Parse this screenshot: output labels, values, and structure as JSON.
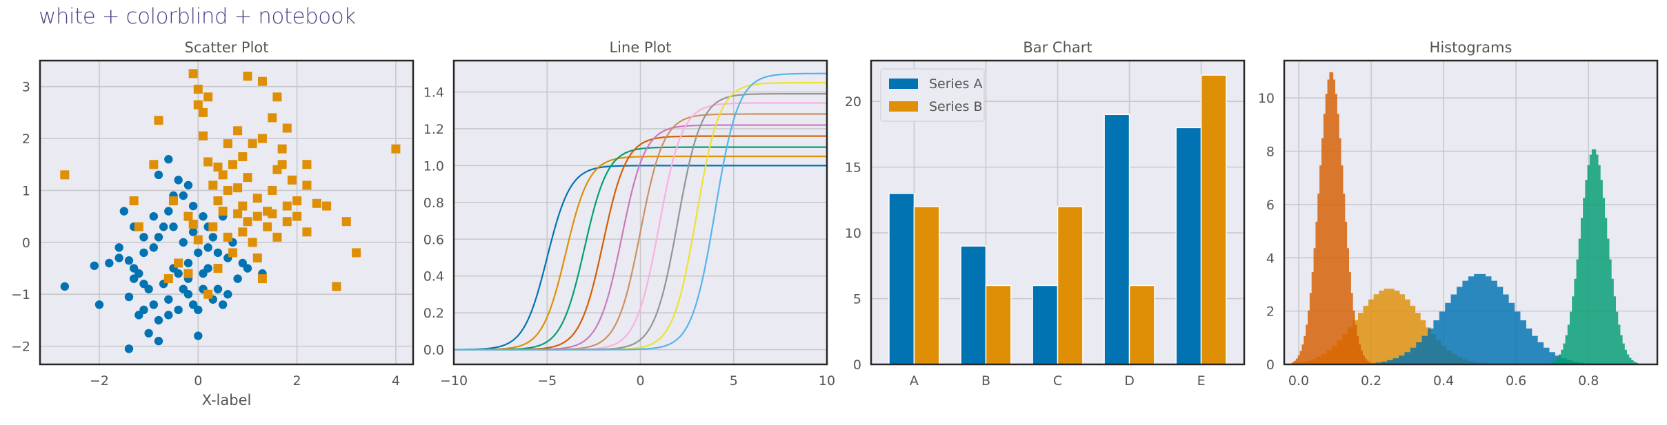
{
  "figure": {
    "suptitle": "white + colorblind + notebook",
    "colors": {
      "background": "#eaeaf2",
      "grid": "#c8c8cc",
      "palette": [
        "#0173b2",
        "#de8f05",
        "#029e73",
        "#d55e00",
        "#cc78bc",
        "#ca9161",
        "#fbafe4",
        "#949494",
        "#ece133",
        "#56b4e9"
      ]
    }
  },
  "chart_data": [
    {
      "type": "scatter",
      "title": "Scatter Plot",
      "xlabel": "X-label",
      "ylabel": "",
      "xlim": [
        -3.2,
        4.35
      ],
      "ylim": [
        -2.35,
        3.5
      ],
      "xticks": [
        -2,
        0,
        2,
        4
      ],
      "yticks": [
        -2,
        -1,
        0,
        1,
        2,
        3
      ],
      "grid": true,
      "series": [
        {
          "marker": "circle",
          "color": "#0173b2",
          "points": [
            [
              -2.7,
              -0.85
            ],
            [
              -2.0,
              -1.2
            ],
            [
              -1.6,
              -0.1
            ],
            [
              -1.4,
              -0.35
            ],
            [
              -1.3,
              -0.5
            ],
            [
              -1.2,
              -0.6
            ],
            [
              -1.1,
              -0.8
            ],
            [
              -1.4,
              -1.05
            ],
            [
              -1.0,
              -0.9
            ],
            [
              -0.9,
              -1.2
            ],
            [
              -1.2,
              -1.4
            ],
            [
              -1.4,
              -2.05
            ],
            [
              -0.8,
              -1.9
            ],
            [
              -1.0,
              -1.75
            ],
            [
              -1.1,
              -1.3
            ],
            [
              -0.8,
              -1.5
            ],
            [
              -0.6,
              -1.1
            ],
            [
              -0.4,
              -1.3
            ],
            [
              -0.3,
              -0.9
            ],
            [
              -0.2,
              -0.7
            ],
            [
              -0.1,
              -1.2
            ],
            [
              0.0,
              -1.3
            ],
            [
              0.1,
              -0.9
            ],
            [
              0.2,
              -0.5
            ],
            [
              0.3,
              -1.1
            ],
            [
              0.4,
              -0.9
            ],
            [
              0.5,
              -1.2
            ],
            [
              0.6,
              -1.0
            ],
            [
              0.8,
              -0.7
            ],
            [
              0.9,
              -0.4
            ],
            [
              0.6,
              -0.3
            ],
            [
              0.4,
              -0.2
            ],
            [
              0.3,
              0.1
            ],
            [
              0.2,
              0.3
            ],
            [
              0.1,
              0.5
            ],
            [
              -0.1,
              0.7
            ],
            [
              -0.3,
              0.9
            ],
            [
              -0.5,
              0.9
            ],
            [
              -0.6,
              0.6
            ],
            [
              -0.7,
              0.3
            ],
            [
              -0.8,
              0.1
            ],
            [
              -0.9,
              -0.1
            ],
            [
              -1.1,
              0.1
            ],
            [
              -1.3,
              0.3
            ],
            [
              -1.5,
              0.6
            ],
            [
              -1.6,
              -0.3
            ],
            [
              -1.8,
              -0.4
            ],
            [
              -0.2,
              1.1
            ],
            [
              -0.4,
              1.2
            ],
            [
              -0.6,
              1.6
            ],
            [
              -0.8,
              1.3
            ],
            [
              -0.5,
              0.3
            ],
            [
              -0.3,
              0.0
            ],
            [
              0.0,
              -0.2
            ],
            [
              0.2,
              -0.1
            ],
            [
              0.5,
              0.5
            ],
            [
              0.7,
              0.0
            ],
            [
              1.0,
              -0.5
            ],
            [
              -0.2,
              -0.4
            ],
            [
              -0.4,
              -0.6
            ],
            [
              -0.7,
              -0.8
            ],
            [
              -0.5,
              -0.5
            ],
            [
              0.1,
              -0.6
            ],
            [
              0.0,
              -1.8
            ],
            [
              -0.9,
              0.5
            ],
            [
              -1.1,
              -0.2
            ],
            [
              -1.3,
              -0.7
            ],
            [
              -0.6,
              -1.4
            ],
            [
              -0.2,
              -1.0
            ],
            [
              -0.1,
              0.2
            ],
            [
              1.3,
              -0.6
            ],
            [
              -2.1,
              -0.45
            ]
          ]
        },
        {
          "marker": "square",
          "color": "#de8f05",
          "points": [
            [
              -2.7,
              1.3
            ],
            [
              -1.3,
              0.8
            ],
            [
              -1.2,
              0.3
            ],
            [
              -0.9,
              1.5
            ],
            [
              -0.8,
              2.35
            ],
            [
              -0.6,
              -0.7
            ],
            [
              -0.5,
              0.8
            ],
            [
              -0.4,
              -0.4
            ],
            [
              -0.2,
              0.5
            ],
            [
              -0.1,
              3.25
            ],
            [
              0.0,
              2.95
            ],
            [
              0.0,
              2.65
            ],
            [
              0.1,
              2.5
            ],
            [
              0.1,
              2.05
            ],
            [
              0.2,
              1.55
            ],
            [
              0.3,
              1.1
            ],
            [
              0.3,
              0.3
            ],
            [
              0.4,
              0.8
            ],
            [
              0.5,
              1.3
            ],
            [
              0.6,
              1.9
            ],
            [
              0.7,
              1.5
            ],
            [
              0.8,
              1.05
            ],
            [
              0.9,
              0.7
            ],
            [
              1.0,
              0.4
            ],
            [
              1.1,
              0.0
            ],
            [
              1.2,
              -0.3
            ],
            [
              1.3,
              -0.7
            ],
            [
              1.4,
              0.6
            ],
            [
              1.5,
              1.0
            ],
            [
              1.6,
              1.4
            ],
            [
              1.7,
              1.8
            ],
            [
              1.8,
              2.2
            ],
            [
              1.6,
              2.8
            ],
            [
              1.3,
              3.1
            ],
            [
              1.0,
              3.2
            ],
            [
              0.8,
              2.15
            ],
            [
              0.9,
              1.65
            ],
            [
              1.0,
              1.25
            ],
            [
              1.2,
              0.85
            ],
            [
              1.4,
              0.3
            ],
            [
              1.6,
              0.1
            ],
            [
              1.8,
              0.4
            ],
            [
              2.0,
              0.8
            ],
            [
              2.2,
              1.1
            ],
            [
              2.4,
              0.75
            ],
            [
              2.6,
              0.7
            ],
            [
              2.8,
              -0.85
            ],
            [
              3.0,
              0.4
            ],
            [
              3.2,
              -0.2
            ],
            [
              4.0,
              1.8
            ],
            [
              0.4,
              -0.5
            ],
            [
              0.2,
              -1.0
            ],
            [
              -0.2,
              -0.6
            ],
            [
              0.6,
              0.1
            ],
            [
              0.7,
              -0.2
            ],
            [
              0.5,
              0.6
            ],
            [
              1.1,
              1.9
            ],
            [
              1.3,
              2.0
            ],
            [
              1.5,
              2.4
            ],
            [
              1.7,
              1.5
            ],
            [
              1.9,
              1.2
            ],
            [
              2.2,
              1.5
            ],
            [
              2.0,
              0.5
            ],
            [
              2.2,
              0.2
            ],
            [
              1.8,
              0.7
            ],
            [
              1.5,
              0.55
            ],
            [
              1.2,
              0.5
            ],
            [
              0.9,
              0.2
            ],
            [
              0.4,
              1.45
            ],
            [
              0.2,
              2.8
            ],
            [
              0.6,
              1.0
            ],
            [
              0.8,
              0.55
            ],
            [
              -0.1,
              0.35
            ],
            [
              0.0,
              0.05
            ]
          ]
        }
      ]
    },
    {
      "type": "line",
      "title": "Line Plot",
      "xlabel": "",
      "ylabel": "",
      "xlim": [
        -10,
        10
      ],
      "ylim": [
        -0.08,
        1.57
      ],
      "xticks": [
        -10,
        -5,
        0,
        5,
        10
      ],
      "yticks": [
        0.0,
        0.2,
        0.4,
        0.6,
        0.8,
        1.0,
        1.2,
        1.4
      ],
      "grid": true,
      "series": [
        {
          "color": "#0173b2",
          "x0": -5,
          "amplitude": 1.0
        },
        {
          "color": "#de8f05",
          "x0": -4,
          "amplitude": 1.05
        },
        {
          "color": "#029e73",
          "x0": -3,
          "amplitude": 1.1
        },
        {
          "color": "#d55e00",
          "x0": -2,
          "amplitude": 1.16
        },
        {
          "color": "#cc78bc",
          "x0": -1,
          "amplitude": 1.22
        },
        {
          "color": "#ca9161",
          "x0": 0,
          "amplitude": 1.28
        },
        {
          "color": "#fbafe4",
          "x0": 1,
          "amplitude": 1.34
        },
        {
          "color": "#949494",
          "x0": 2,
          "amplitude": 1.39
        },
        {
          "color": "#ece133",
          "x0": 3,
          "amplitude": 1.45
        },
        {
          "color": "#56b4e9",
          "x0": 4,
          "amplitude": 1.5
        }
      ]
    },
    {
      "type": "bar",
      "title": "Bar Chart",
      "xlabel": "",
      "ylabel": "",
      "categories": [
        "A",
        "B",
        "C",
        "D",
        "E"
      ],
      "ylim": [
        0,
        23.1
      ],
      "yticks": [
        0,
        5,
        10,
        15,
        20
      ],
      "legend": "top-left",
      "grid": true,
      "series": [
        {
          "name": "Series A",
          "color": "#0173b2",
          "values": [
            13,
            9,
            6,
            19,
            18
          ]
        },
        {
          "name": "Series B",
          "color": "#de8f05",
          "values": [
            12,
            6,
            12,
            6,
            22
          ]
        }
      ]
    },
    {
      "type": "area",
      "title": "Histograms",
      "xlabel": "",
      "ylabel": "",
      "xlim": [
        -0.04,
        0.99
      ],
      "ylim": [
        0,
        11.4
      ],
      "xticks": [
        0.0,
        0.2,
        0.4,
        0.6,
        0.8
      ],
      "yticks": [
        0,
        2,
        4,
        6,
        8,
        10
      ],
      "grid": true,
      "series": [
        {
          "color": "#de8f05",
          "center": 0.25,
          "width": 0.09,
          "peak": 2.85
        },
        {
          "color": "#0173b2",
          "center": 0.5,
          "width": 0.1,
          "peak": 3.4
        },
        {
          "color": "#029e73",
          "center": 0.815,
          "width": 0.038,
          "peak": 8.1
        },
        {
          "color": "#d55e00",
          "center": 0.09,
          "width": 0.034,
          "peak": 11.0
        }
      ]
    }
  ]
}
